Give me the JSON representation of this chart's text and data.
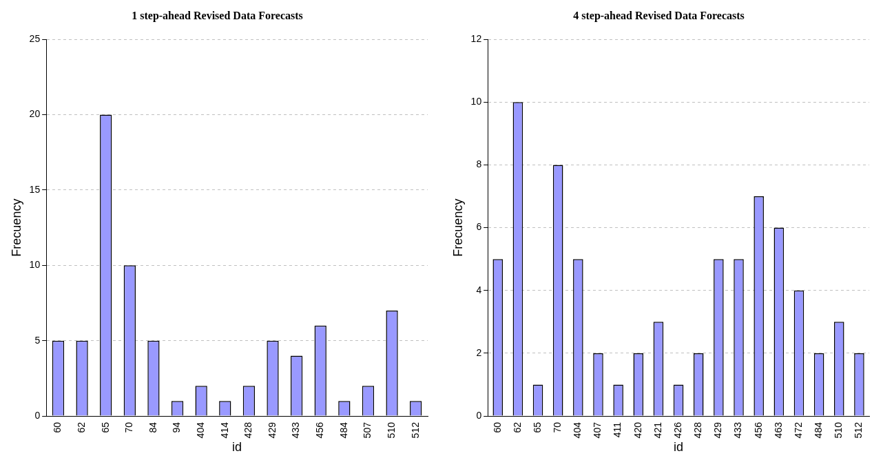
{
  "chart_data": [
    {
      "type": "bar",
      "title": "1 step-ahead Revised Data Forecasts",
      "xlabel": "id",
      "ylabel": "Frecuency",
      "categories": [
        "60",
        "62",
        "65",
        "70",
        "84",
        "94",
        "404",
        "414",
        "428",
        "429",
        "433",
        "456",
        "484",
        "507",
        "510",
        "512"
      ],
      "values": [
        5,
        5,
        20,
        10,
        5,
        1,
        2,
        1,
        2,
        5,
        4,
        6,
        1,
        2,
        7,
        1
      ],
      "color": "#9999ff",
      "ylim": [
        0,
        25
      ],
      "yticks": [
        0,
        5,
        10,
        15,
        20,
        25
      ],
      "grid": "y",
      "legend": false
    },
    {
      "type": "bar",
      "title": "4 step-ahead Revised Data Forecasts",
      "xlabel": "id",
      "ylabel": "Frecuency",
      "categories": [
        "60",
        "62",
        "65",
        "70",
        "404",
        "407",
        "411",
        "420",
        "421",
        "426",
        "428",
        "429",
        "433",
        "456",
        "463",
        "472",
        "484",
        "510",
        "512"
      ],
      "values": [
        5,
        10,
        1,
        8,
        5,
        2,
        1,
        2,
        3,
        1,
        2,
        5,
        5,
        7,
        6,
        4,
        2,
        3,
        2
      ],
      "color": "#9999ff",
      "ylim": [
        0,
        12
      ],
      "yticks": [
        0,
        2,
        4,
        6,
        8,
        10,
        12
      ],
      "grid": "y",
      "legend": false
    }
  ]
}
